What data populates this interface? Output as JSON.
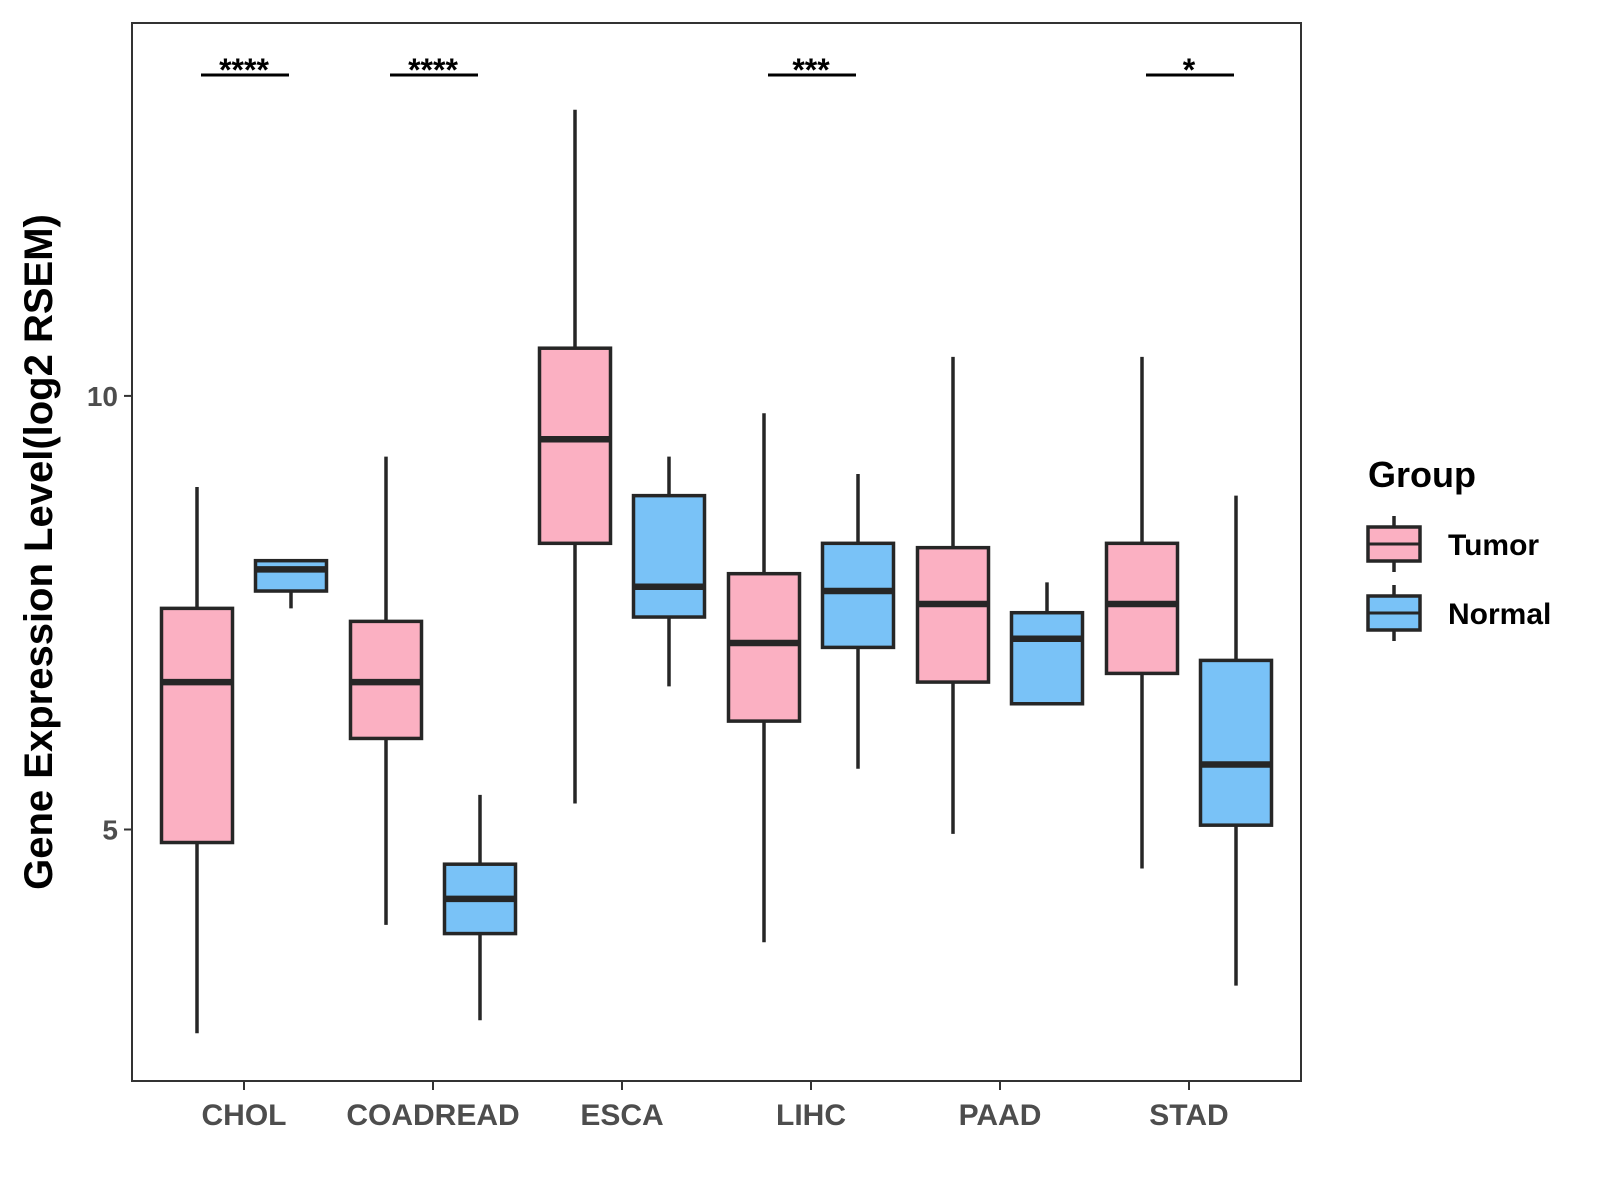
{
  "chart_data": {
    "type": "boxplot",
    "ylabel": "Gene Expression Level(log2 RSEM)",
    "xlabel": "",
    "ylim": [
      2.1,
      14.3
    ],
    "yticks": [
      5,
      10
    ],
    "categories": [
      "CHOL",
      "COADREAD",
      "ESCA",
      "LIHC",
      "PAAD",
      "STAD"
    ],
    "legend": {
      "title": "Group",
      "position": "right",
      "items": [
        {
          "name": "Tumor",
          "color": "#FBB0C2"
        },
        {
          "name": "Normal",
          "color": "#79C2F7"
        }
      ]
    },
    "series": [
      {
        "name": "Tumor",
        "color": "#FBB0C2",
        "boxes": [
          {
            "category": "CHOL",
            "min": 2.65,
            "q1": 4.85,
            "median": 6.7,
            "q3": 7.55,
            "max": 8.95
          },
          {
            "category": "COADREAD",
            "min": 3.9,
            "q1": 6.05,
            "median": 6.7,
            "q3": 7.4,
            "max": 9.3
          },
          {
            "category": "ESCA",
            "min": 5.3,
            "q1": 8.3,
            "median": 9.5,
            "q3": 10.55,
            "max": 13.3
          },
          {
            "category": "LIHC",
            "min": 3.7,
            "q1": 6.25,
            "median": 7.15,
            "q3": 7.95,
            "max": 9.8
          },
          {
            "category": "PAAD",
            "min": 4.95,
            "q1": 6.7,
            "median": 7.6,
            "q3": 8.25,
            "max": 10.45
          },
          {
            "category": "STAD",
            "min": 4.55,
            "q1": 6.8,
            "median": 7.6,
            "q3": 8.3,
            "max": 10.45
          }
        ]
      },
      {
        "name": "Normal",
        "color": "#79C2F7",
        "boxes": [
          {
            "category": "CHOL",
            "min": 7.55,
            "q1": 7.75,
            "median": 8.0,
            "q3": 8.1,
            "max": 8.1
          },
          {
            "category": "COADREAD",
            "min": 2.8,
            "q1": 3.8,
            "median": 4.2,
            "q3": 4.6,
            "max": 5.4
          },
          {
            "category": "ESCA",
            "min": 6.65,
            "q1": 7.45,
            "median": 7.8,
            "q3": 8.85,
            "max": 9.3
          },
          {
            "category": "LIHC",
            "min": 5.7,
            "q1": 7.1,
            "median": 7.75,
            "q3": 8.3,
            "max": 9.1
          },
          {
            "category": "PAAD",
            "min": 6.45,
            "q1": 6.45,
            "median": 7.2,
            "q3": 7.5,
            "max": 7.85
          },
          {
            "category": "STAD",
            "min": 3.2,
            "q1": 5.05,
            "median": 5.75,
            "q3": 6.95,
            "max": 8.85
          }
        ]
      }
    ],
    "annotations": [
      {
        "category": "CHOL",
        "label": "****"
      },
      {
        "category": "COADREAD",
        "label": "****"
      },
      {
        "category": "ESCA",
        "label": ""
      },
      {
        "category": "LIHC",
        "label": "***"
      },
      {
        "category": "PAAD",
        "label": ""
      },
      {
        "category": "STAD",
        "label": "*"
      }
    ]
  }
}
